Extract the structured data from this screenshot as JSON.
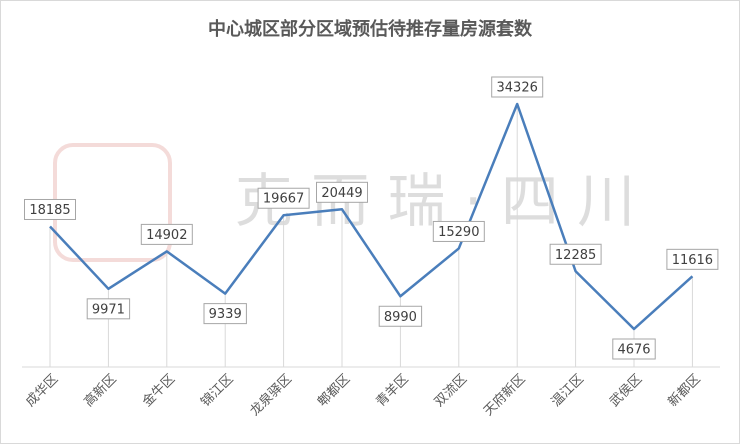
{
  "chart_data": {
    "type": "line",
    "title": "中心城区部分区域预估待推存量房源套数",
    "watermark": "克 而 瑞 · 四 川",
    "categories": [
      "成华区",
      "高新区",
      "金牛区",
      "锦江区",
      "龙泉驿区",
      "郫都区",
      "青羊区",
      "双流区",
      "天府新区",
      "温江区",
      "武侯区",
      "新都区"
    ],
    "series": [
      {
        "name": "待推存量房源套数",
        "color": "#4a7ebb",
        "values": [
          18185,
          9971,
          14902,
          9339,
          19667,
          20449,
          8990,
          15290,
          34326,
          12285,
          4676,
          11616
        ]
      }
    ],
    "drop_lines": true
  }
}
